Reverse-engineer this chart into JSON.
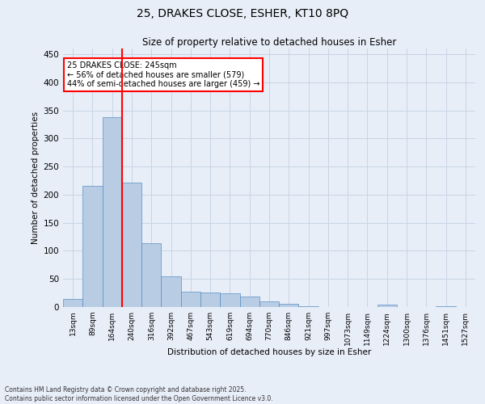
{
  "title_line1": "25, DRAKES CLOSE, ESHER, KT10 8PQ",
  "title_line2": "Size of property relative to detached houses in Esher",
  "xlabel": "Distribution of detached houses by size in Esher",
  "ylabel": "Number of detached properties",
  "categories": [
    "13sqm",
    "89sqm",
    "164sqm",
    "240sqm",
    "316sqm",
    "392sqm",
    "467sqm",
    "543sqm",
    "619sqm",
    "694sqm",
    "770sqm",
    "846sqm",
    "921sqm",
    "997sqm",
    "1073sqm",
    "1149sqm",
    "1224sqm",
    "1300sqm",
    "1376sqm",
    "1451sqm",
    "1527sqm"
  ],
  "values": [
    15,
    216,
    338,
    222,
    113,
    54,
    27,
    26,
    25,
    19,
    10,
    6,
    2,
    0,
    0,
    0,
    4,
    0,
    0,
    2,
    0
  ],
  "bar_color": "#b8cce4",
  "bar_edge_color": "#5a8fc4",
  "grid_color": "#c8d4e4",
  "background_color": "#e8eef8",
  "vline_color": "red",
  "vline_index": 2,
  "annotation_text": "25 DRAKES CLOSE: 245sqm\n← 56% of detached houses are smaller (579)\n44% of semi-detached houses are larger (459) →",
  "annotation_box_color": "white",
  "annotation_box_edge": "red",
  "footer_text": "Contains HM Land Registry data © Crown copyright and database right 2025.\nContains public sector information licensed under the Open Government Licence v3.0.",
  "ylim": [
    0,
    460
  ],
  "yticks": [
    0,
    50,
    100,
    150,
    200,
    250,
    300,
    350,
    400,
    450
  ]
}
